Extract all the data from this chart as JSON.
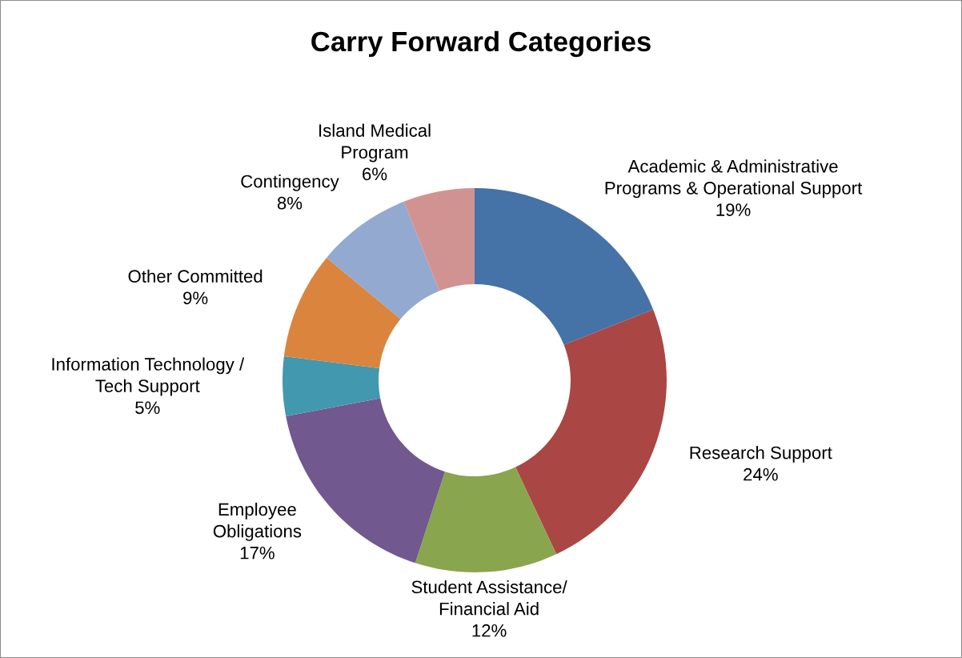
{
  "chart_data": {
    "type": "donut",
    "title": "Carry Forward Categories",
    "categories": [
      "Academic & Administrative\nPrograms & Operational Support",
      "Research Support",
      "Student Assistance/\nFinancial Aid",
      "Employee\nObligations",
      "Information Technology /\nTech Support",
      "Other Committed",
      "Contingency",
      "Island Medical\nProgram"
    ],
    "values": [
      19,
      24,
      12,
      17,
      5,
      9,
      8,
      6
    ],
    "colors": [
      "#4572a7",
      "#aa4643",
      "#89a54e",
      "#71588f",
      "#4198af",
      "#db843d",
      "#93a9cf",
      "#d19392"
    ],
    "value_labels": [
      "19%",
      "24%",
      "12%",
      "17%",
      "5%",
      "9%",
      "8%",
      "6%"
    ],
    "legend": false
  }
}
